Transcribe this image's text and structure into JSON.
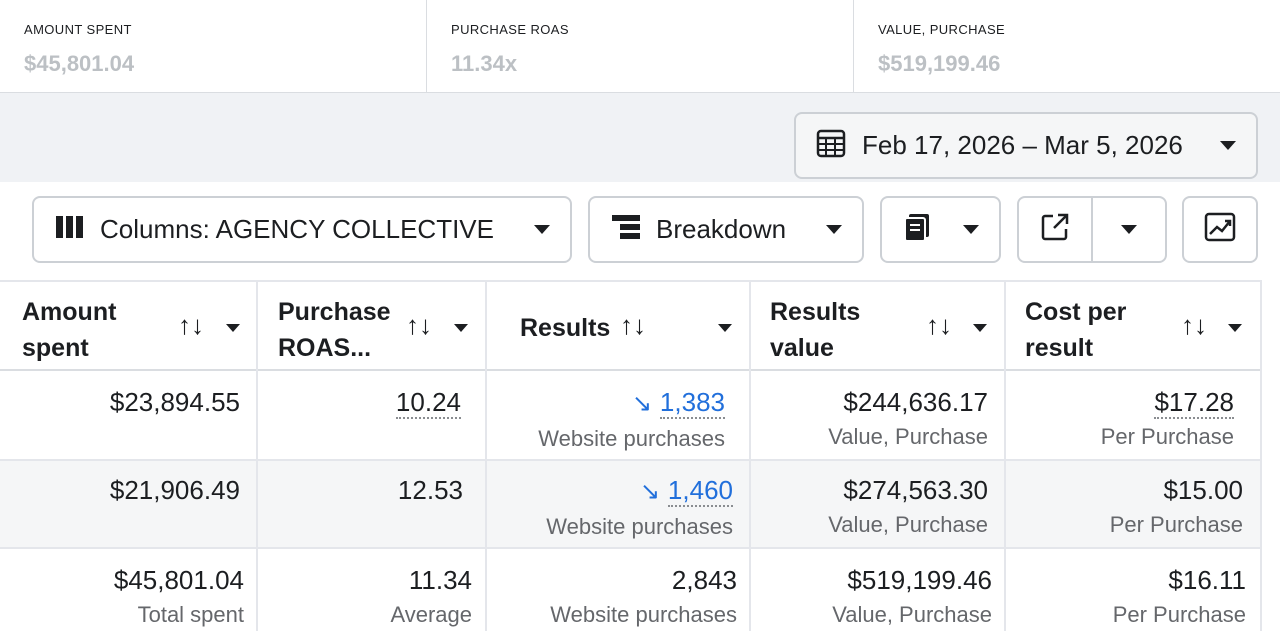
{
  "stats": [
    {
      "label": "AMOUNT SPENT",
      "value": "$45,801.04"
    },
    {
      "label": "PURCHASE ROAS",
      "value": "11.34x"
    },
    {
      "label": "VALUE, PURCHASE",
      "value": "$519,199.46"
    }
  ],
  "date_range": {
    "label": "Feb 17, 2026 – Mar 5, 2026",
    "icon": "calendar-icon"
  },
  "toolbar": {
    "columns_label": "Columns: AGENCY COLLECTIVE",
    "breakdown_label": "Breakdown"
  },
  "table": {
    "headers": [
      {
        "line1": "Amount",
        "line2": "spent"
      },
      {
        "line1": "Purchase",
        "line2": "ROAS..."
      },
      {
        "line1": "Results",
        "line2": ""
      },
      {
        "line1": "Results",
        "line2": "value"
      },
      {
        "line1": "Cost per",
        "line2": "result"
      }
    ],
    "sort_glyph": "↑↓",
    "rows": [
      {
        "amount_spent": "$23,894.55",
        "roas": "10.24",
        "results": "1,383",
        "results_sub": "Website purchases",
        "results_value": "$244,636.17",
        "results_value_sub": "Value, Purchase",
        "cost_per_result": "$17.28",
        "cost_per_result_sub": "Per Purchase"
      },
      {
        "amount_spent": "$21,906.49",
        "roas": "12.53",
        "results": "1,460",
        "results_sub": "Website purchases",
        "results_value": "$274,563.30",
        "results_value_sub": "Value, Purchase",
        "cost_per_result": "$15.00",
        "cost_per_result_sub": "Per Purchase"
      }
    ],
    "totals": {
      "amount_spent": "$45,801.04",
      "amount_spent_sub": "Total spent",
      "roas": "11.34",
      "roas_sub": "Average",
      "results": "2,843",
      "results_sub": "Website purchases",
      "results_value": "$519,199.46",
      "results_value_sub": "Value, Purchase",
      "cost_per_result": "$16.11",
      "cost_per_result_sub": "Per Purchase"
    }
  },
  "colors": {
    "accent": "#216fdb",
    "muted": "#bcc0c4",
    "border": "#ccd0d5"
  },
  "icons": [
    "calendar-icon",
    "columns-icon",
    "breakdown-icon",
    "reports-icon",
    "export-icon",
    "chart-icon",
    "trend-down-icon"
  ]
}
